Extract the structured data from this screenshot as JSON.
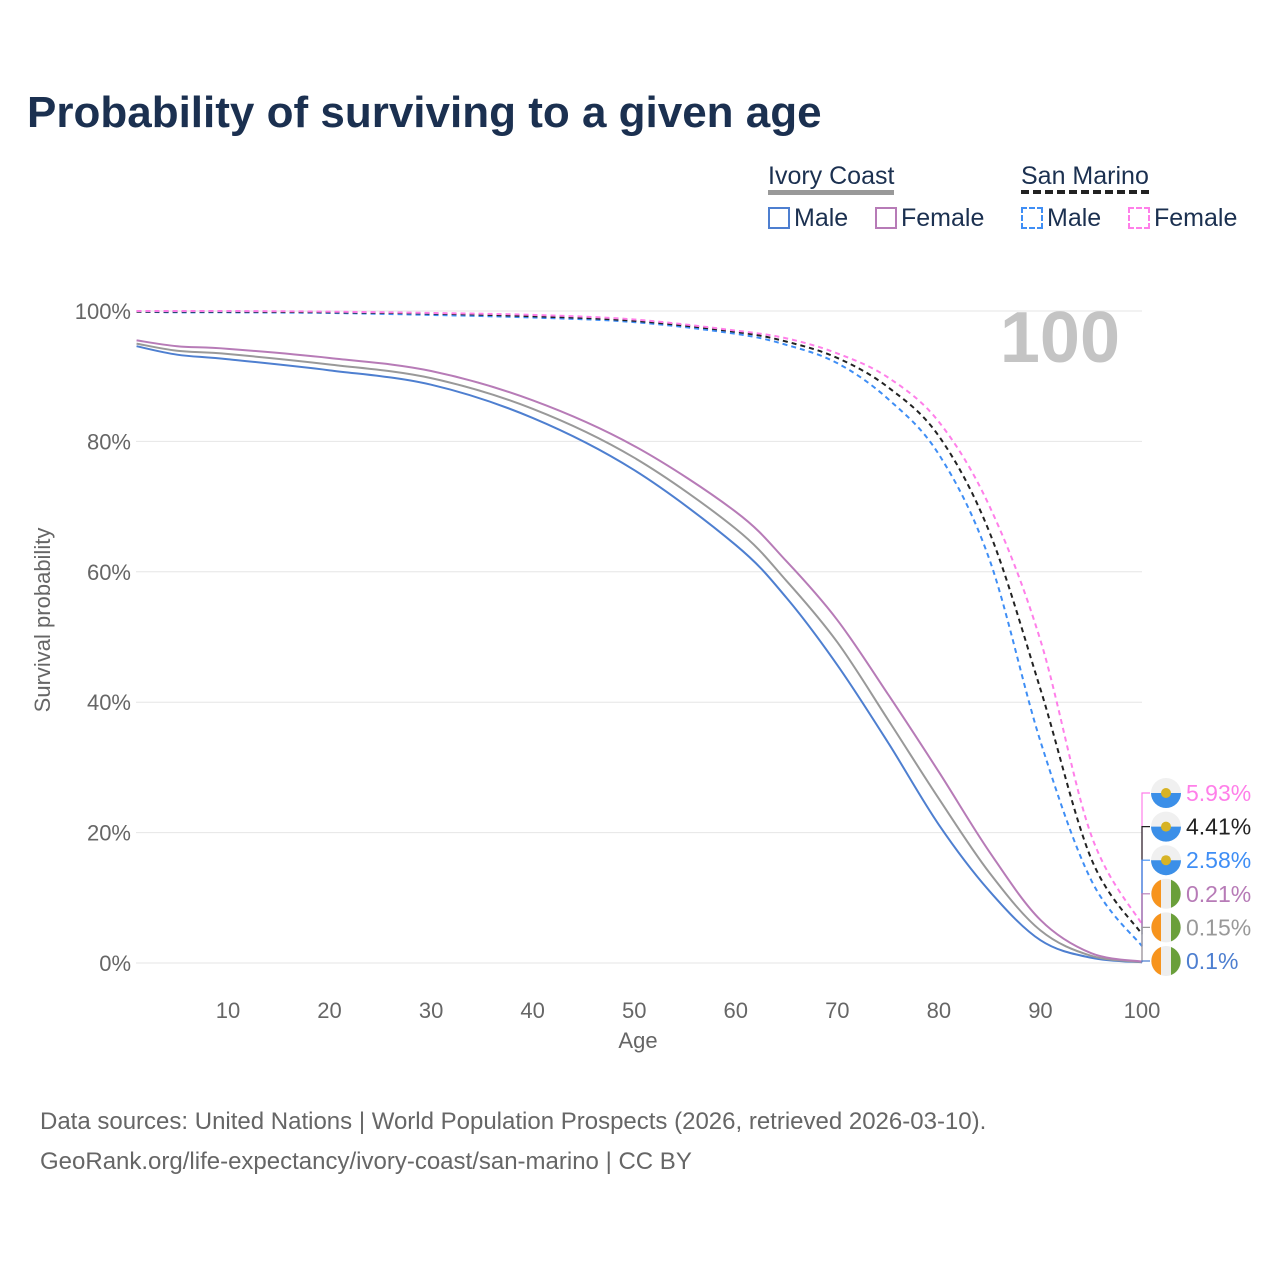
{
  "title": "Probability of surviving to a given age",
  "legend": {
    "groups": [
      {
        "name": "Ivory Coast",
        "items": [
          {
            "label": "Male",
            "color": "#4e7fd0"
          },
          {
            "label": "Female",
            "color": "#b77bb7"
          }
        ]
      },
      {
        "name": "San Marino",
        "items": [
          {
            "label": "Male",
            "color": "#3f8ef5"
          },
          {
            "label": "Female",
            "color": "#ff7fe9"
          }
        ]
      }
    ]
  },
  "age_indicator": "100",
  "source_line1": "Data sources: United Nations | World Population Prospects (2026, retrieved 2026-03-10).",
  "source_line2": "GeoRank.org/life-expectancy/ivory-coast/san-marino | CC BY",
  "chart_data": {
    "type": "line",
    "xlabel": "Age",
    "ylabel": "Survival probability",
    "xlim": [
      0,
      100
    ],
    "ylim": [
      0,
      100
    ],
    "xticks": [
      10,
      20,
      30,
      40,
      50,
      60,
      70,
      80,
      90,
      100
    ],
    "yticks": [
      {
        "v": 0,
        "label": "0%"
      },
      {
        "v": 20,
        "label": "20%"
      },
      {
        "v": 40,
        "label": "40%"
      },
      {
        "v": 60,
        "label": "60%"
      },
      {
        "v": 80,
        "label": "80%"
      },
      {
        "v": 100,
        "label": "100%"
      }
    ],
    "x": [
      1,
      5,
      10,
      20,
      30,
      40,
      50,
      60,
      65,
      70,
      75,
      80,
      85,
      90,
      95,
      100
    ],
    "series": [
      {
        "name": "Ivory Coast Male",
        "country": "ci",
        "color": "#4e7fd0",
        "dash": false,
        "end_label": "0.1%",
        "values": [
          94.6,
          93.3,
          92.6,
          90.9,
          88.7,
          83.6,
          75.6,
          64.1,
          56,
          45.7,
          33.8,
          21.2,
          11,
          3.5,
          0.8,
          0.1
        ]
      },
      {
        "name": "Ivory Coast Total",
        "country": "ci",
        "color": "#999999",
        "dash": false,
        "end_label": "0.15%",
        "values": [
          95,
          93.9,
          93.4,
          91.8,
          89.7,
          85,
          77.5,
          66.6,
          58.6,
          49.2,
          37.3,
          25.2,
          13.8,
          5,
          1.1,
          0.15
        ]
      },
      {
        "name": "Ivory Coast Female",
        "country": "ci",
        "color": "#b77bb7",
        "dash": false,
        "end_label": "0.21%",
        "values": [
          95.5,
          94.6,
          94.2,
          92.8,
          90.8,
          86.3,
          79.3,
          69.2,
          61.6,
          52.6,
          41.2,
          29.3,
          17,
          6.6,
          1.5,
          0.21
        ]
      },
      {
        "name": "San Marino Male",
        "country": "sm",
        "color": "#3f8ef5",
        "dash": true,
        "end_label": "2.58%",
        "values": [
          99.9,
          99.8,
          99.8,
          99.7,
          99.4,
          99,
          98.3,
          96.5,
          94.8,
          92,
          86.5,
          78,
          61.8,
          34,
          12.7,
          2.58
        ]
      },
      {
        "name": "San Marino Total",
        "country": "sm",
        "color": "#222222",
        "dash": true,
        "end_label": "4.41%",
        "values": [
          99.9,
          99.9,
          99.9,
          99.8,
          99.6,
          99.2,
          98.5,
          96.8,
          95.3,
          92.8,
          88.3,
          80.8,
          66,
          42,
          16,
          4.41
        ]
      },
      {
        "name": "San Marino Female",
        "country": "sm",
        "color": "#ff7fe9",
        "dash": true,
        "end_label": "5.93%",
        "values": [
          100,
          100,
          100,
          99.9,
          99.7,
          99.4,
          98.7,
          97,
          95.8,
          93.5,
          89.8,
          83,
          70,
          49.5,
          19.6,
          5.93
        ]
      }
    ]
  }
}
